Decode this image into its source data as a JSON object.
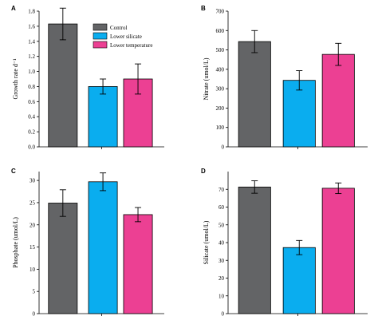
{
  "colors": {
    "control": "#636466",
    "lower_silicate": "#0AADEF",
    "lower_temperature": "#EC4093"
  },
  "legend": {
    "items": [
      {
        "label": "Control",
        "color": "#636466"
      },
      {
        "label": "Lower silicate",
        "color": "#0AADEF"
      },
      {
        "label": "Lower temperature",
        "color": "#EC4093"
      }
    ],
    "placement": "top-right of panel A"
  },
  "chart_data": [
    {
      "panel": "A",
      "type": "bar",
      "categories": [
        "Control",
        "Lower silicate",
        "Lower temperature"
      ],
      "values": [
        1.63,
        0.8,
        0.9
      ],
      "errors": [
        0.21,
        0.1,
        0.2
      ],
      "ylabel": "Growth rate d⁻¹",
      "ylim": [
        0,
        1.8
      ],
      "yticks": [
        "0.0",
        "0.2",
        "0.4",
        "0.6",
        "0.8",
        "1.0",
        "1.2",
        "1.4",
        "1.6",
        "1.8"
      ],
      "grid": false
    },
    {
      "panel": "B",
      "type": "bar",
      "categories": [
        "Control",
        "Lower silicate",
        "Lower temperature"
      ],
      "values": [
        543,
        343,
        477
      ],
      "errors": [
        57,
        50,
        57
      ],
      "ylabel": "Nitrate (umol/L)",
      "ylim": [
        0,
        700
      ],
      "yticks": [
        "0",
        "100",
        "200",
        "300",
        "400",
        "500",
        "600",
        "700"
      ],
      "grid": false
    },
    {
      "panel": "C",
      "type": "bar",
      "categories": [
        "Control",
        "Lower silicate",
        "Lower temperature"
      ],
      "values": [
        24.9,
        29.7,
        22.3
      ],
      "errors": [
        3.0,
        2.0,
        1.6
      ],
      "ylabel": "Phosphate (umol/L)",
      "ylim": [
        0,
        32
      ],
      "yticks": [
        "0",
        "5",
        "10",
        "15",
        "20",
        "25",
        "30"
      ],
      "grid": false
    },
    {
      "panel": "D",
      "type": "bar",
      "categories": [
        "Control",
        "Lower silicate",
        "Lower temperature"
      ],
      "values": [
        71.3,
        37.2,
        70.6
      ],
      "errors": [
        3.5,
        4.0,
        3.0
      ],
      "ylabel": "Silicate (umol/L)",
      "ylim": [
        0,
        80
      ],
      "yticks": [
        "0",
        "10",
        "20",
        "30",
        "40",
        "50",
        "60",
        "70"
      ],
      "grid": false
    }
  ]
}
